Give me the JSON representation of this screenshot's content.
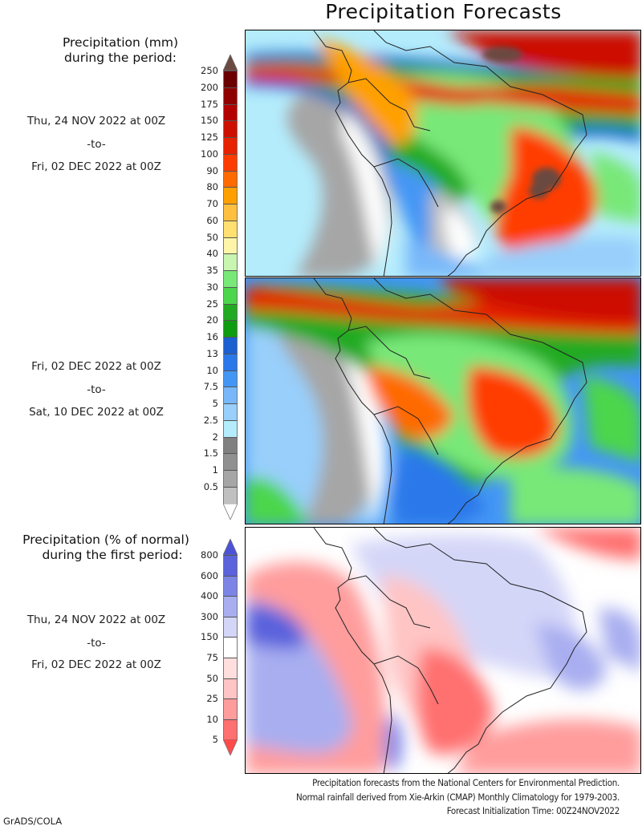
{
  "title": "Precipitation Forecasts",
  "legend_mm": {
    "title_line1": "Precipitation (mm)",
    "title_line2": "during the period:",
    "ticks": [
      "250",
      "200",
      "175",
      "150",
      "125",
      "100",
      "90",
      "80",
      "70",
      "60",
      "50",
      "40",
      "35",
      "30",
      "25",
      "20",
      "16",
      "13",
      "10",
      "7.5",
      "5",
      "2.5",
      "2",
      "1.5",
      "1",
      "0.5"
    ],
    "colors": [
      "#6b0000",
      "#8f0000",
      "#b30000",
      "#cc1100",
      "#e62200",
      "#ff3c00",
      "#ff6a00",
      "#ffa000",
      "#ffc040",
      "#ffe070",
      "#fff5a8",
      "#c8f5b0",
      "#78e878",
      "#4cd64c",
      "#22aa22",
      "#109c10",
      "#1c5fd0",
      "#2a78ea",
      "#4496f5",
      "#78b8fa",
      "#98cffb",
      "#b4ecfc",
      "#808080",
      "#909090",
      "#a6a6a6",
      "#c0c0c0"
    ],
    "top_arrow_color": "#6a4a40",
    "bottom_arrow_color": "#ffffff"
  },
  "period1": {
    "start": "Thu, 24 NOV 2022 at 00Z",
    "sep": "-to-",
    "end": "Fri, 02 DEC 2022 at 00Z"
  },
  "period2": {
    "start": "Fri, 02 DEC 2022 at 00Z",
    "sep": "-to-",
    "end": "Sat, 10 DEC 2022 at 00Z"
  },
  "legend_pct": {
    "title_line1": "Precipitation (% of normal)",
    "title_line2": "during the first period:",
    "ticks": [
      "800",
      "600",
      "400",
      "300",
      "150",
      "75",
      "50",
      "25",
      "10",
      "5"
    ],
    "colors": [
      "#5a62dc",
      "#7c84e6",
      "#a8aef0",
      "#d4d6f8",
      "#ffffff",
      "#ffdede",
      "#ffc4c4",
      "#ff9c9c",
      "#ff7070"
    ],
    "top_arrow_color": "#4b52d8",
    "bottom_arrow_color": "#ff4a4a"
  },
  "period3": {
    "start": "Thu, 24 NOV 2022 at 00Z",
    "sep": "-to-",
    "end": "Fri, 02 DEC 2022 at 00Z"
  },
  "credits": {
    "line1": "Precipitation forecasts from the National Centers for Environmental Prediction.",
    "line2": "Normal rainfall derived from Xie-Arkin (CMAP) Monthly Climatology for 1979-2003.",
    "line3": "Forecast Initialization Time: 00Z24NOV2022"
  },
  "software": "GrADS/COLA",
  "chart_data": [
    {
      "type": "heatmap",
      "title": "Precipitation (mm) during the period: Thu, 24 NOV 2022 at 00Z -to- Fri, 02 DEC 2022 at 00Z",
      "region": "South America",
      "levels": [
        0.5,
        1,
        1.5,
        2,
        2.5,
        5,
        7.5,
        10,
        13,
        16,
        20,
        25,
        30,
        35,
        40,
        50,
        60,
        70,
        80,
        90,
        100,
        125,
        150,
        175,
        200,
        250
      ]
    },
    {
      "type": "heatmap",
      "title": "Precipitation (mm) during the period: Fri, 02 DEC 2022 at 00Z -to- Sat, 10 DEC 2022 at 00Z",
      "region": "South America",
      "levels": [
        0.5,
        1,
        1.5,
        2,
        2.5,
        5,
        7.5,
        10,
        13,
        16,
        20,
        25,
        30,
        35,
        40,
        50,
        60,
        70,
        80,
        90,
        100,
        125,
        150,
        175,
        200,
        250
      ]
    },
    {
      "type": "heatmap",
      "title": "Precipitation (% of normal) during the first period: Thu, 24 NOV 2022 at 00Z -to- Fri, 02 DEC 2022 at 00Z",
      "region": "South America",
      "levels": [
        5,
        10,
        25,
        50,
        75,
        150,
        300,
        400,
        600,
        800
      ]
    }
  ]
}
